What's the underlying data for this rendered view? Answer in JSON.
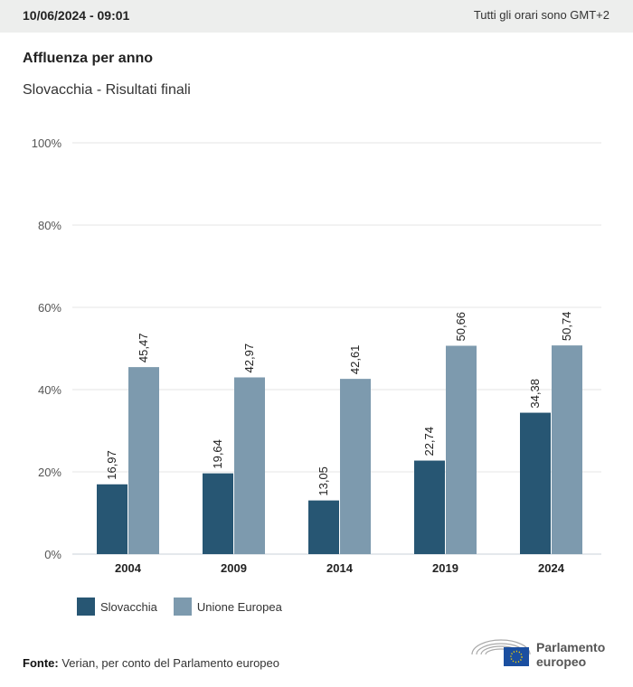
{
  "header": {
    "datetime": "10/06/2024 - 09:01",
    "timezone_note": "Tutti gli orari sono GMT+2"
  },
  "title": "Affluenza per anno",
  "subtitle": "Slovacchia - Risultati finali",
  "chart_data": {
    "type": "bar",
    "title": "Affluenza per anno",
    "subtitle": "Slovacchia - Risultati finali",
    "categories": [
      "2004",
      "2009",
      "2014",
      "2019",
      "2024"
    ],
    "series": [
      {
        "name": "Slovacchia",
        "color": "#275673",
        "values": [
          16.97,
          19.64,
          13.05,
          22.74,
          34.38
        ],
        "labels": [
          "16,97",
          "19,64",
          "13,05",
          "22,74",
          "34,38"
        ]
      },
      {
        "name": "Unione Europea",
        "color": "#7d9aae",
        "values": [
          45.47,
          42.97,
          42.61,
          50.66,
          50.74
        ],
        "labels": [
          "45,47",
          "42,97",
          "42,61",
          "50,66",
          "50,74"
        ]
      }
    ],
    "ylim": [
      0,
      100
    ],
    "yticks": [
      0,
      20,
      40,
      60,
      80,
      100
    ],
    "ytick_labels": [
      "0%",
      "20%",
      "40%",
      "60%",
      "80%",
      "100%"
    ],
    "grid": true,
    "legend": "bottom-left"
  },
  "legend": {
    "items": [
      "Slovacchia",
      "Unione Europea"
    ]
  },
  "footer": {
    "source_label": "Fonte:",
    "source_text": " Verian, per conto del Parlamento europeo",
    "logo_line1": "Parlamento",
    "logo_line2": "europeo"
  }
}
